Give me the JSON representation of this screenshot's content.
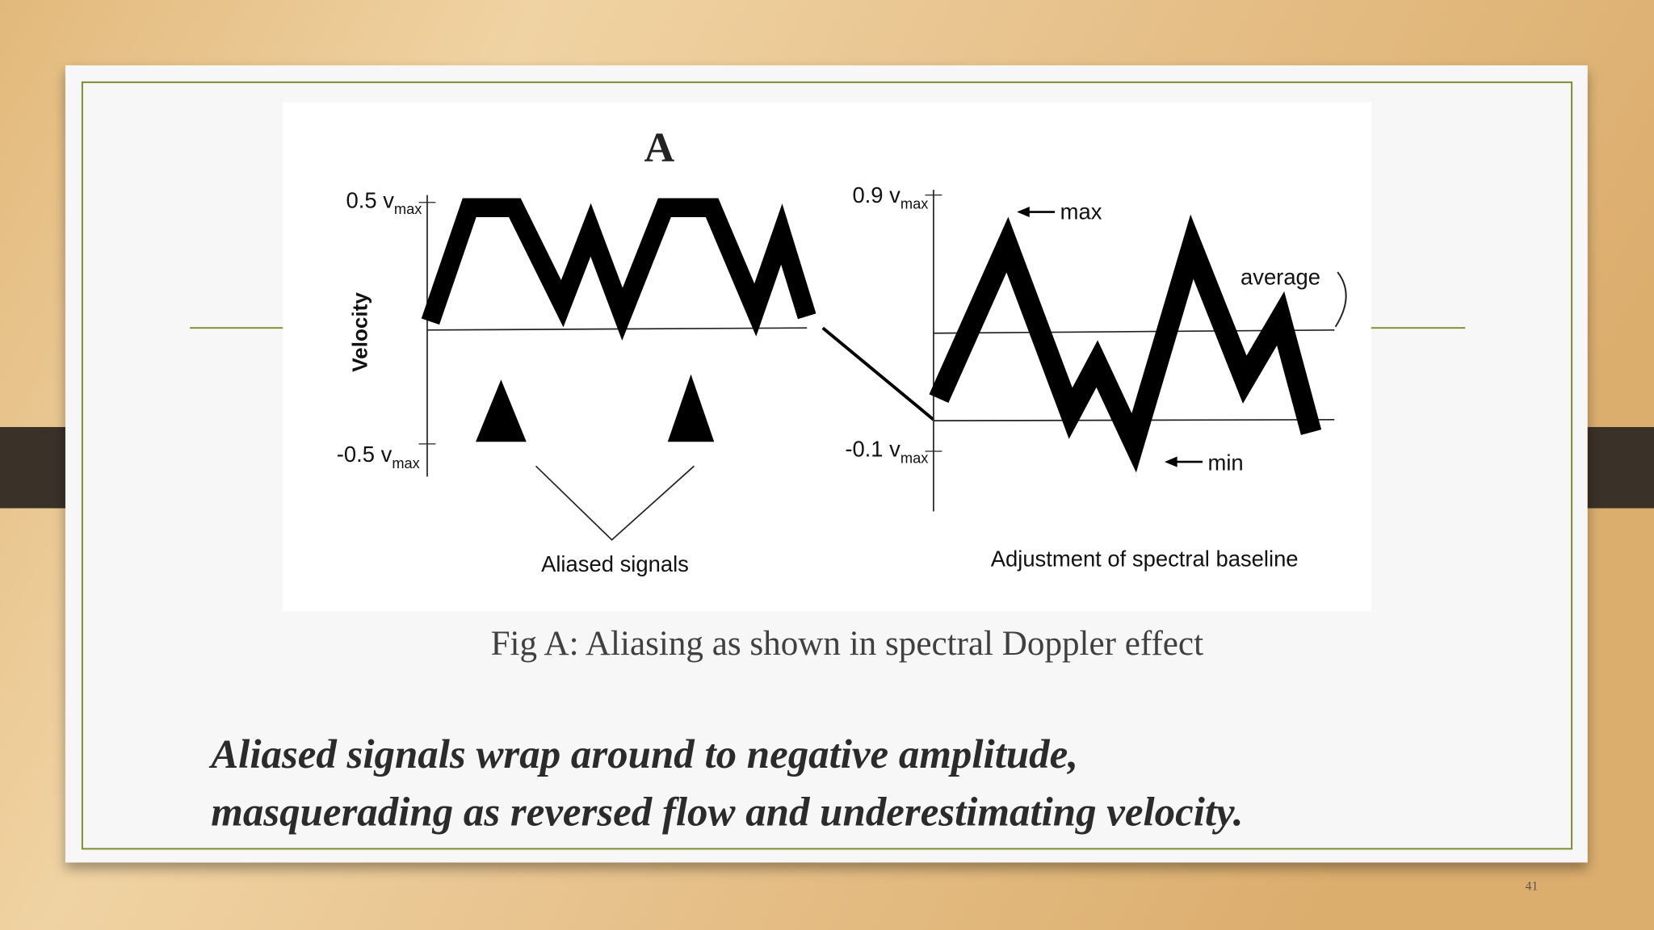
{
  "figure": {
    "panel_label": "A",
    "left": {
      "y_axis_title": "Velocity",
      "top_label": {
        "text": "0.5 v",
        "sub": "max"
      },
      "bottom_label": {
        "text": "-0.5 v",
        "sub": "max"
      },
      "annotation": "Aliased signals"
    },
    "right": {
      "top_label": {
        "text": "0.9 v",
        "sub": "max"
      },
      "bottom_label": {
        "text": "-0.1 v",
        "sub": "max"
      },
      "max_label": "max",
      "average_label": "average",
      "min_label": "min",
      "annotation": "Adjustment of spectral baseline"
    }
  },
  "caption": "Fig A: Aliasing as shown in spectral Doppler effect",
  "body": [
    "Aliased signals wrap around to negative amplitude,",
    "masquerading as reversed flow and underestimating velocity."
  ],
  "page_number": "41"
}
